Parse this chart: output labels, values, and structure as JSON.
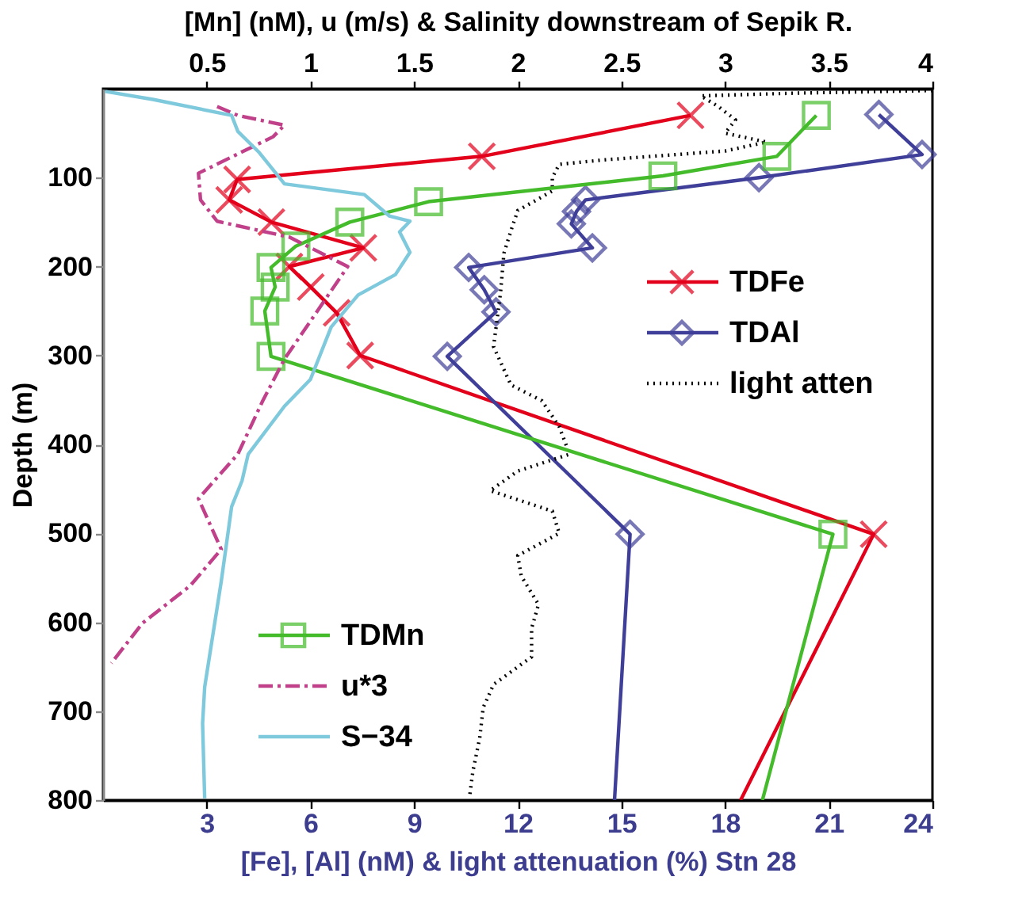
{
  "chart_data": {
    "type": "line",
    "x2label": "[Mn] (nM), u (m/s) & Salinity downstream of Sepik R.",
    "xlabel": "[Fe], [Al] (nM) & light attenuation (%) Stn 28",
    "ylabel": "Depth (m)",
    "xlim": [
      0,
      24
    ],
    "xticks": [
      3,
      6,
      9,
      12,
      15,
      18,
      21,
      24
    ],
    "x2lim": [
      0,
      4
    ],
    "x2ticks": [
      0.5,
      1,
      1.5,
      2,
      2.5,
      3,
      3.5,
      4
    ],
    "ylim": [
      800,
      0
    ],
    "yticks": [
      100,
      200,
      300,
      400,
      500,
      600,
      700,
      800
    ],
    "grid": false,
    "legend": [
      "right",
      "bottom left"
    ],
    "series": [
      {
        "name": "TDFe",
        "color": "#e3001b",
        "marker": "cross",
        "line_style": "solid",
        "x": [
          17.0,
          10.96,
          3.88,
          3.65,
          4.87,
          7.53,
          5.39,
          6.01,
          6.76,
          7.44,
          22.3,
          18.45
        ],
        "values": [
          30,
          76,
          102,
          125,
          150,
          179,
          200,
          223,
          252,
          300,
          501,
          800
        ]
      },
      {
        "name": "TDAl",
        "color": "#3f3f99",
        "marker": "diamond",
        "line_style": "solid",
        "x": [
          22.45,
          23.7,
          18.98,
          13.96,
          13.7,
          13.55,
          14.16,
          10.58,
          11.03,
          11.37,
          9.96,
          15.25,
          14.8
        ],
        "values": [
          29,
          74,
          100,
          125,
          138,
          152,
          179,
          201,
          226,
          251,
          301,
          501,
          800
        ]
      },
      {
        "name": "light atten",
        "color": "#000000",
        "marker": "none",
        "line_style": "dotted",
        "x": [
          24,
          20,
          17.3,
          17.8,
          18.3,
          18.0,
          19.2,
          18.0,
          14.5,
          13.2,
          13.0,
          13.0,
          12.0,
          11.8,
          11.6,
          11.5,
          11.3,
          11.8,
          12.7,
          13.2,
          13.5,
          12.0,
          11.2,
          13.0,
          13.2,
          12.0,
          12.1,
          12.6,
          12.4,
          12.4,
          11.3,
          11.0,
          10.9,
          10.7,
          10.6
        ],
        "values": [
          2,
          5,
          8,
          20,
          35,
          50,
          60,
          70,
          80,
          85,
          100,
          115,
          137,
          160,
          185,
          230,
          290,
          333,
          351,
          380,
          411,
          430,
          452,
          475,
          500,
          525,
          548,
          580,
          607,
          639,
          670,
          696,
          730,
          768,
          798
        ]
      },
      {
        "name": "TDMn",
        "color": "#44bb2a",
        "marker": "square",
        "line_style": "solid",
        "axis": "x2",
        "x": [
          3.44,
          3.25,
          2.7,
          1.57,
          1.19,
          0.93,
          0.81,
          0.83,
          0.78,
          0.81,
          3.52,
          3.18
        ],
        "values": [
          30,
          76,
          98,
          127,
          150,
          177,
          201,
          223,
          250,
          301,
          501,
          800
        ]
      },
      {
        "name": "u*3",
        "color": "#c0408a",
        "marker": "none",
        "line_style": "dashed",
        "axis": "x2",
        "x": [
          0.55,
          0.65,
          0.875,
          0.82,
          0.46,
          0.47,
          0.55,
          0.9,
          1.18,
          0.875,
          0.77,
          0.65,
          0.46,
          0.57,
          0.42,
          0.19,
          0.04
        ],
        "values": [
          20,
          30,
          41,
          54,
          95,
          125,
          149,
          167,
          200,
          304,
          351,
          411,
          461,
          518,
          559,
          601,
          646
        ]
      },
      {
        "name": "S−34",
        "color": "#7fc9dd",
        "marker": "none",
        "line_style": "solid",
        "axis": "x2",
        "x": [
          0.01,
          0.24,
          0.62,
          0.65,
          0.75,
          0.875,
          1.26,
          1.38,
          1.48,
          1.43,
          1.48,
          1.41,
          1.23,
          1.1,
          1.0,
          0.875,
          0.7,
          0.67,
          0.62,
          0.57,
          0.49,
          0.48,
          0.49
        ],
        "values": [
          3,
          12,
          30,
          48,
          71,
          107,
          119,
          143,
          149,
          161,
          184,
          209,
          232,
          268,
          327,
          357,
          411,
          441,
          470,
          554,
          673,
          714,
          798
        ]
      }
    ]
  }
}
